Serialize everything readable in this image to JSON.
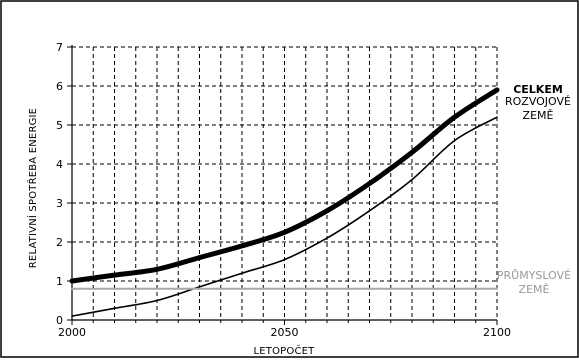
{
  "chart_data": {
    "type": "line",
    "xlabel": "LETOPOČET",
    "ylabel": "RELATIVNÍ SPOTŘEBA ENERGIE",
    "xlim": [
      2000,
      2100
    ],
    "ylim": [
      0,
      7
    ],
    "x_ticks": [
      2000,
      2050,
      2100
    ],
    "y_ticks": [
      0,
      1,
      2,
      3,
      4,
      5,
      6,
      7
    ],
    "grid": true,
    "series": [
      {
        "name": "CELKEM",
        "color": "#000000",
        "x": [
          2000,
          2010,
          2020,
          2030,
          2040,
          2050,
          2060,
          2070,
          2080,
          2090,
          2100
        ],
        "y": [
          1.0,
          1.15,
          1.3,
          1.6,
          1.9,
          2.25,
          2.8,
          3.5,
          4.3,
          5.2,
          5.9
        ]
      },
      {
        "name": "ROZVOJOVÉ ZEMĚ",
        "color": "#000000",
        "x": [
          2000,
          2010,
          2020,
          2030,
          2040,
          2050,
          2060,
          2070,
          2080,
          2090,
          2100
        ],
        "y": [
          0.1,
          0.3,
          0.5,
          0.85,
          1.2,
          1.55,
          2.1,
          2.8,
          3.6,
          4.6,
          5.2
        ]
      },
      {
        "name": "PRŮMYSLOVÉ ZEMĚ",
        "color": "#a8a8a8",
        "x": [
          2000,
          2100
        ],
        "y": [
          0.8,
          0.8
        ]
      }
    ],
    "label_lines": {
      "total": [
        "CELKEM"
      ],
      "developing": [
        "ROZVOJOVÉ",
        "ZEMĚ"
      ],
      "industrial": [
        "PRŮMYSLOVÉ",
        "ZEMĚ"
      ]
    }
  }
}
